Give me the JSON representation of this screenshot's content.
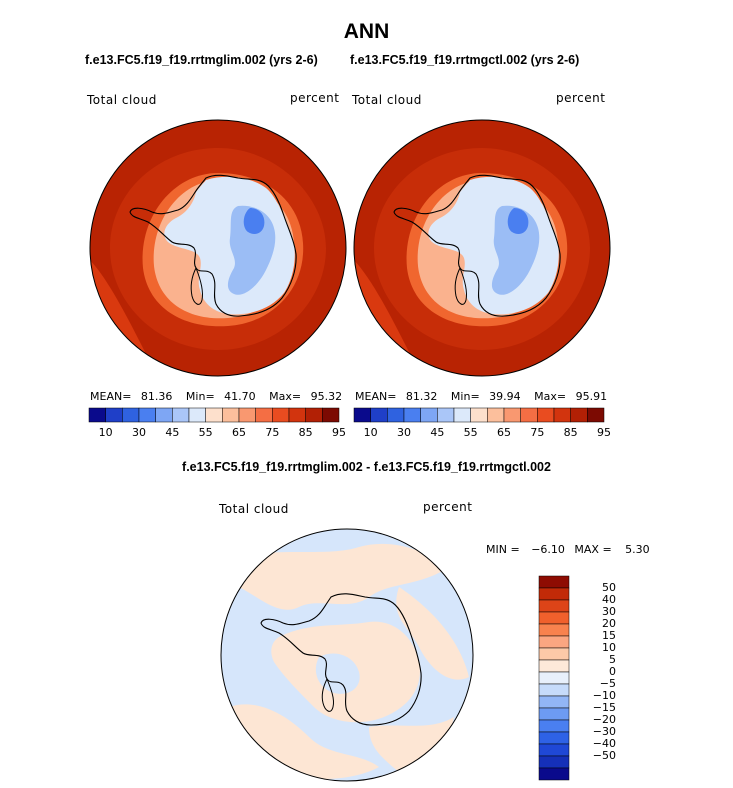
{
  "title": "ANN",
  "colors": {
    "absolute_scale": [
      "#0a0a8c",
      "#1f3fc8",
      "#2f62e0",
      "#4a7ff0",
      "#7ea6f4",
      "#aac6f8",
      "#dce9fa",
      "#fde0cc",
      "#fcbf9c",
      "#f99870",
      "#f46e44",
      "#e94c20",
      "#d2340e",
      "#b22005",
      "#7c0a02"
    ],
    "diff_scale": [
      "#0a0a8c",
      "#1530b8",
      "#1f48d6",
      "#2e62e6",
      "#4a7ff0",
      "#6d9bf2",
      "#92b6f6",
      "#c6dbfa",
      "#e8f0fb",
      "#fde9d9",
      "#fcc9a8",
      "#fba681",
      "#f8824e",
      "#f0602c",
      "#dd4418",
      "#c22a08",
      "#8e0c02"
    ],
    "ocean_red": "#b82303",
    "antarctica_blue": "#9bbdf5",
    "diff_ocean_light_blue": "#d6e6fb",
    "diff_peach": "#fde6d4"
  },
  "panel_left": {
    "subtitle": "f.e13.FC5.f19_f19.rrtmglim.002 (yrs 2-6)",
    "variable": "Total cloud",
    "units": "percent",
    "mean_label": "MEAN=",
    "mean": "81.36",
    "min_label": "Min=",
    "min": "41.70",
    "max_label": "Max=",
    "max": "95.32"
  },
  "panel_right": {
    "subtitle": "f.e13.FC5.f19_f19.rrtmgctl.002 (yrs 2-6)",
    "variable": "Total cloud",
    "units": "percent",
    "mean_label": "MEAN=",
    "mean": "81.32",
    "min_label": "Min=",
    "min": "39.94",
    "max_label": "Max=",
    "max": "95.91"
  },
  "panel_diff": {
    "subtitle": "f.e13.FC5.f19_f19.rrtmglim.002 - f.e13.FC5.f19_f19.rrtmgctl.002",
    "variable": "Total cloud",
    "units": "percent",
    "min_label": "MIN =",
    "min": "−6.10",
    "max_label": "MAX =",
    "max": "5.30"
  },
  "colorbar_horizontal_ticks": [
    "10",
    "30",
    "45",
    "55",
    "65",
    "75",
    "85",
    "95"
  ],
  "colorbar_diff_ticks": [
    "50",
    "40",
    "30",
    "20",
    "15",
    "10",
    "5",
    "0",
    "−5",
    "−10",
    "−15",
    "−20",
    "−30",
    "−40",
    "−50"
  ]
}
